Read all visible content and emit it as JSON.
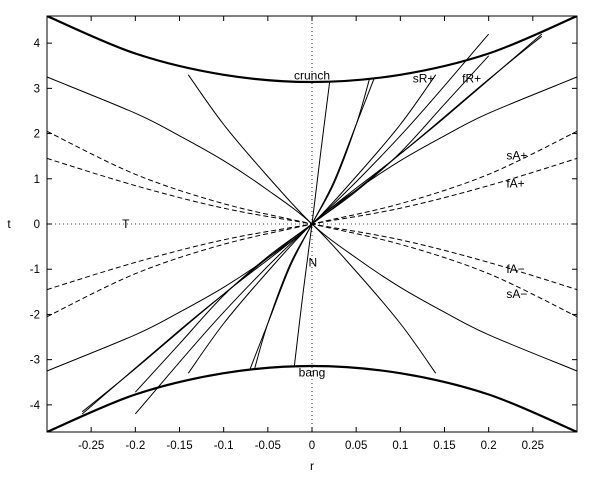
{
  "chart_data": {
    "type": "line",
    "title": "",
    "xlabel": "r",
    "ylabel": "t",
    "xlim": [
      -0.3,
      0.3
    ],
    "ylim": [
      -4.6,
      4.6
    ],
    "xticks": [
      -0.25,
      -0.2,
      -0.15,
      -0.1,
      -0.05,
      0,
      0.05,
      0.1,
      0.15,
      0.2,
      0.25
    ],
    "xtick_labels": [
      "-0.25",
      "-0.2",
      "-0.15",
      "-0.1",
      "-0.05",
      "0",
      "0.05",
      "0.1",
      "0.15",
      "0.2",
      "0.25"
    ],
    "yticks": [
      -4,
      -3,
      -2,
      -1,
      0,
      1,
      2,
      3,
      4
    ],
    "ytick_labels": [
      "-4",
      "-3",
      "-2",
      "-1",
      "0",
      "1",
      "2",
      "3",
      "4"
    ],
    "grid": false,
    "legend": "none",
    "series": [
      {
        "name": "crunch",
        "style": "thick",
        "x": [
          -0.3,
          -0.2,
          -0.1,
          0,
          0.1,
          0.2,
          0.3
        ],
        "y": [
          4.6,
          3.77,
          3.3,
          3.14,
          3.3,
          3.77,
          4.6
        ]
      },
      {
        "name": "bang",
        "style": "thick",
        "x": [
          -0.3,
          -0.2,
          -0.1,
          0,
          0.1,
          0.2,
          0.3
        ],
        "y": [
          -4.6,
          -3.77,
          -3.3,
          -3.14,
          -3.3,
          -3.77,
          -4.6
        ]
      },
      {
        "name": "",
        "style": "solid",
        "x": [
          -0.26,
          -0.2,
          -0.1,
          0,
          0.1,
          0.2
        ],
        "y": [
          -4.15,
          -3.2,
          -1.55,
          0,
          1.95,
          4.2
        ]
      },
      {
        "name": "",
        "style": "solid",
        "x": [
          -0.2,
          -0.15,
          -0.1,
          -0.05,
          0,
          0.05,
          0.1,
          0.15,
          0.26
        ],
        "y": [
          -3.72,
          -2.65,
          -1.58,
          -0.72,
          0,
          0.75,
          1.55,
          2.35,
          4.2
        ]
      },
      {
        "name": "",
        "style": "solid",
        "x": [
          -0.14,
          -0.1,
          -0.05,
          0,
          0.05,
          0.1,
          0.15,
          0.2,
          0.3
        ],
        "y": [
          -3.3,
          -2.2,
          -1.05,
          0,
          0.75,
          1.4,
          1.95,
          2.45,
          3.25
        ]
      },
      {
        "name": "",
        "style": "solid",
        "x": [
          -0.065,
          -0.05,
          -0.025,
          0,
          0.025,
          0.05,
          0.07
        ],
        "y": [
          -3.2,
          -2.2,
          -0.9,
          0,
          0.95,
          2.2,
          3.2
        ]
      },
      {
        "name": "",
        "style": "solid",
        "x": [
          -0.02,
          -0.01,
          0,
          0.01,
          0.02
        ],
        "y": [
          -3.15,
          -1.5,
          0,
          1.6,
          3.15
        ]
      },
      {
        "name": "",
        "style": "solid",
        "x": [
          -0.3,
          -0.2,
          -0.15,
          -0.1,
          -0.05,
          0,
          0.05,
          0.1,
          0.14
        ],
        "y": [
          -3.25,
          -2.45,
          -1.95,
          -1.4,
          -0.75,
          0,
          1.05,
          2.2,
          3.3
        ]
      },
      {
        "name": "",
        "style": "solid",
        "x": [
          -0.26,
          -0.15,
          -0.1,
          -0.05,
          0,
          0.05,
          0.1,
          0.15,
          0.2
        ],
        "y": [
          -4.2,
          -2.35,
          -1.55,
          -0.75,
          0,
          0.72,
          1.58,
          2.65,
          3.72
        ]
      },
      {
        "name": "",
        "style": "solid",
        "x": [
          -0.2,
          -0.1,
          0,
          0.1,
          0.2,
          0.26
        ],
        "y": [
          -4.2,
          -1.95,
          0,
          1.55,
          3.2,
          4.15
        ]
      },
      {
        "name": "",
        "style": "solid",
        "x": [
          -0.07,
          -0.05,
          -0.025,
          0,
          0.025,
          0.05,
          0.065
        ],
        "y": [
          -3.2,
          -2.2,
          -0.95,
          0,
          0.9,
          2.2,
          3.2
        ]
      },
      {
        "name": "",
        "style": "solid",
        "x": [
          -0.14,
          -0.1,
          -0.05,
          0,
          0.05,
          0.1,
          0.15,
          0.2,
          0.3
        ],
        "y": [
          3.3,
          2.2,
          1.05,
          0,
          -0.75,
          -1.4,
          -1.95,
          -2.45,
          -3.25
        ]
      },
      {
        "name": "",
        "style": "solid",
        "x": [
          -0.3,
          -0.2,
          -0.15,
          -0.1,
          -0.05,
          0,
          0.05,
          0.1,
          0.14
        ],
        "y": [
          3.25,
          2.45,
          1.95,
          1.4,
          0.75,
          0,
          -1.05,
          -2.2,
          -3.3
        ]
      },
      {
        "name": "",
        "style": "dashed",
        "x": [
          -0.3,
          -0.2,
          -0.1,
          0,
          0.1,
          0.2,
          0.3
        ],
        "y": [
          2.05,
          1.1,
          0.45,
          0,
          -0.45,
          -1.1,
          -2.05
        ]
      },
      {
        "name": "",
        "style": "dashed",
        "x": [
          -0.3,
          -0.2,
          -0.1,
          0,
          0.1,
          0.2,
          0.3
        ],
        "y": [
          1.45,
          0.85,
          0.35,
          0,
          -0.35,
          -0.85,
          -1.45
        ]
      },
      {
        "name": "",
        "style": "dashed",
        "x": [
          -0.3,
          -0.2,
          -0.1,
          0,
          0.1,
          0.2,
          0.3
        ],
        "y": [
          -1.45,
          -0.85,
          -0.35,
          0,
          0.35,
          0.85,
          1.45
        ]
      },
      {
        "name": "",
        "style": "dashed",
        "x": [
          -0.3,
          -0.2,
          -0.1,
          0,
          0.1,
          0.2,
          0.3
        ],
        "y": [
          -2.05,
          -1.1,
          -0.45,
          0,
          0.45,
          1.1,
          2.05
        ]
      },
      {
        "name": "",
        "style": "dotted",
        "x": [
          -0.3,
          0.3
        ],
        "y": [
          0,
          0
        ]
      },
      {
        "name": "",
        "style": "dotted",
        "x": [
          0,
          0
        ],
        "y": [
          -4.6,
          4.6
        ]
      }
    ],
    "annotations": [
      {
        "text": "crunch",
        "x": 0,
        "y": 3.28,
        "anchor": "middle"
      },
      {
        "text": "bang",
        "x": 0,
        "y": -3.28,
        "anchor": "middle"
      },
      {
        "text": "sR+",
        "x": 0.114,
        "y": 3.22,
        "anchor": "start"
      },
      {
        "text": "fR+",
        "x": 0.17,
        "y": 3.22,
        "anchor": "start"
      },
      {
        "text": "sA+",
        "x": 0.22,
        "y": 1.52,
        "anchor": "start"
      },
      {
        "text": "fA+",
        "x": 0.22,
        "y": 0.9,
        "anchor": "start"
      },
      {
        "text": "fA−",
        "x": 0.22,
        "y": -1.0,
        "anchor": "start"
      },
      {
        "text": "sA−",
        "x": 0.22,
        "y": -1.55,
        "anchor": "start"
      },
      {
        "text": "T",
        "x": -0.215,
        "y": 0,
        "anchor": "start"
      },
      {
        "text": "N",
        "x": -0.004,
        "y": -0.85,
        "anchor": "start"
      }
    ]
  }
}
